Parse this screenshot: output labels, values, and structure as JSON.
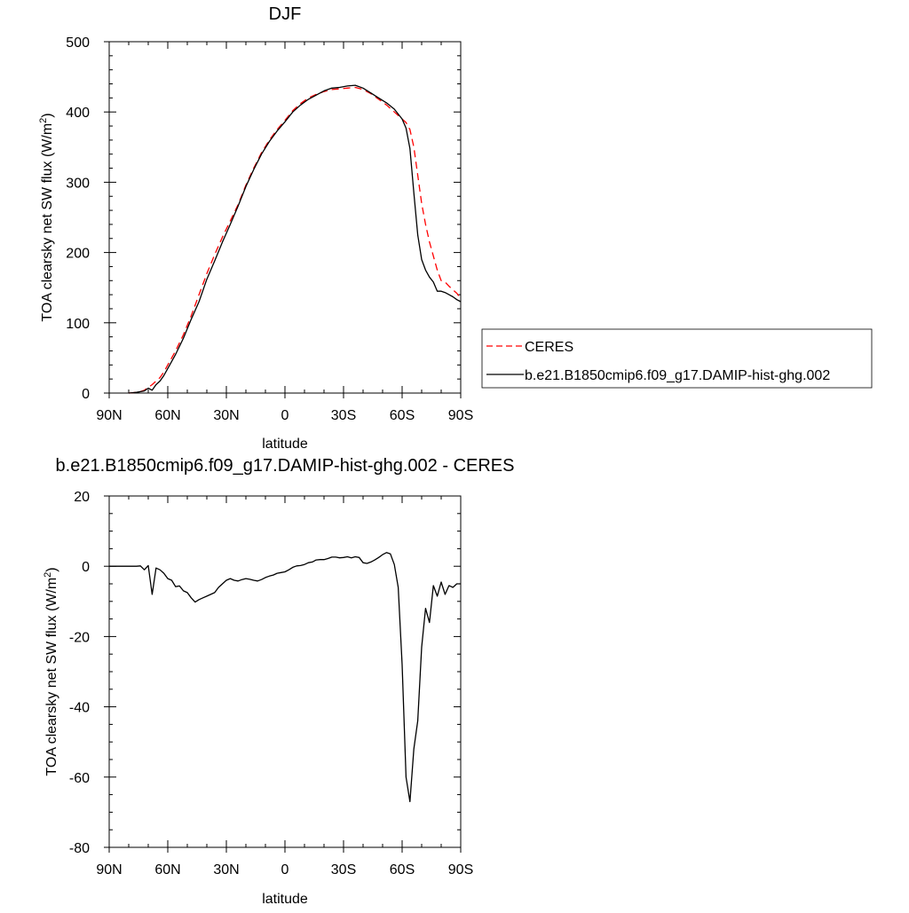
{
  "chart_data": [
    {
      "type": "line",
      "title": "DJF",
      "xlabel": "latitude",
      "ylabel": "TOA clearsky net SW flux (W/m",
      "ylabel_sup": "2",
      "ylabel_end": ")",
      "xlim": [
        90,
        -90
      ],
      "ylim": [
        0,
        500
      ],
      "x_ticks": [
        {
          "value": 90,
          "label": "90N"
        },
        {
          "value": 60,
          "label": "60N"
        },
        {
          "value": 30,
          "label": "30N"
        },
        {
          "value": 0,
          "label": "0"
        },
        {
          "value": -30,
          "label": "30S"
        },
        {
          "value": -60,
          "label": "60S"
        },
        {
          "value": -90,
          "label": "90S"
        }
      ],
      "y_ticks": [
        {
          "value": 0,
          "label": "0"
        },
        {
          "value": 100,
          "label": "100"
        },
        {
          "value": 200,
          "label": "200"
        },
        {
          "value": 300,
          "label": "300"
        },
        {
          "value": 400,
          "label": "400"
        },
        {
          "value": 500,
          "label": "500"
        }
      ],
      "grid": false,
      "legend_position": "right",
      "series": [
        {
          "name": "CERES",
          "color": "#ff0000",
          "dash": "dashed",
          "x": [
            80,
            78,
            76,
            74,
            72,
            70,
            68,
            66,
            64,
            62,
            60,
            56,
            52,
            48,
            44,
            40,
            36,
            32,
            28,
            24,
            20,
            16,
            12,
            8,
            4,
            0,
            -4,
            -8,
            -12,
            -16,
            -20,
            -24,
            -28,
            -32,
            -36,
            -40,
            -44,
            -48,
            -52,
            -56,
            -60,
            -62,
            -64,
            -66,
            -68,
            -70,
            -72,
            -74,
            -76,
            -78,
            -80,
            -82,
            -84,
            -86,
            -88,
            -90
          ],
          "y": [
            0,
            0.5,
            1,
            2,
            4,
            8,
            12,
            17,
            22,
            30,
            40,
            60,
            83,
            110,
            140,
            170,
            197,
            222,
            245,
            268,
            296,
            320,
            342,
            360,
            375,
            388,
            402,
            412,
            420,
            425,
            429,
            432,
            433,
            434,
            435,
            432,
            426,
            418,
            410,
            400,
            390,
            385,
            375,
            350,
            310,
            270,
            240,
            215,
            195,
            175,
            160,
            158,
            152,
            147,
            142,
            135
          ]
        },
        {
          "name": "b.e21.B1850cmip6.f09_g17.DAMIP-hist-ghg.002",
          "color": "#000000",
          "dash": "solid",
          "x": [
            80,
            78,
            76,
            74,
            72,
            70,
            68,
            66,
            64,
            62,
            60,
            56,
            52,
            48,
            44,
            40,
            36,
            32,
            28,
            24,
            20,
            16,
            12,
            8,
            4,
            0,
            -4,
            -8,
            -12,
            -16,
            -20,
            -24,
            -28,
            -32,
            -36,
            -40,
            -44,
            -48,
            -52,
            -56,
            -60,
            -62,
            -64,
            -66,
            -68,
            -70,
            -72,
            -74,
            -76,
            -78,
            -80,
            -82,
            -84,
            -86,
            -88,
            -90
          ],
          "y": [
            0,
            0.5,
            1,
            2,
            3,
            7,
            4,
            12,
            17,
            25,
            35,
            55,
            78,
            105,
            130,
            162,
            188,
            215,
            240,
            266,
            294,
            318,
            340,
            358,
            373,
            386,
            400,
            410,
            418,
            424,
            430,
            434,
            435,
            437,
            438,
            434,
            427,
            420,
            413,
            404,
            390,
            377,
            348,
            285,
            225,
            190,
            175,
            165,
            158,
            145,
            145,
            143,
            140,
            137,
            133,
            130
          ]
        }
      ]
    },
    {
      "type": "line",
      "title": "b.e21.B1850cmip6.f09_g17.DAMIP-hist-ghg.002 - CERES",
      "xlabel": "latitude",
      "ylabel": "TOA clearsky net SW flux (W/m",
      "ylabel_sup": "2",
      "ylabel_end": ")",
      "xlim": [
        90,
        -90
      ],
      "ylim": [
        -80,
        20
      ],
      "x_ticks": [
        {
          "value": 90,
          "label": "90N"
        },
        {
          "value": 60,
          "label": "60N"
        },
        {
          "value": 30,
          "label": "30N"
        },
        {
          "value": 0,
          "label": "0"
        },
        {
          "value": -30,
          "label": "30S"
        },
        {
          "value": -60,
          "label": "60S"
        },
        {
          "value": -90,
          "label": "90S"
        }
      ],
      "y_ticks": [
        {
          "value": -80,
          "label": "-80"
        },
        {
          "value": -60,
          "label": "-60"
        },
        {
          "value": -40,
          "label": "-40"
        },
        {
          "value": -20,
          "label": "-20"
        },
        {
          "value": 0,
          "label": "0"
        },
        {
          "value": 20,
          "label": "20"
        }
      ],
      "grid": false,
      "series": [
        {
          "color": "#000000",
          "dash": "solid",
          "x": [
            90,
            85,
            80,
            76,
            74,
            72,
            70,
            68,
            66,
            64,
            62,
            60,
            58,
            56,
            54,
            52,
            50,
            48,
            46,
            44,
            42,
            40,
            38,
            36,
            34,
            32,
            30,
            28,
            26,
            24,
            22,
            20,
            18,
            16,
            14,
            12,
            10,
            8,
            6,
            4,
            2,
            0,
            -2,
            -4,
            -6,
            -8,
            -10,
            -12,
            -14,
            -16,
            -18,
            -20,
            -22,
            -24,
            -26,
            -28,
            -30,
            -32,
            -34,
            -36,
            -38,
            -40,
            -42,
            -44,
            -46,
            -48,
            -50,
            -52,
            -54,
            -56,
            -58,
            -60,
            -62,
            -64,
            -66,
            -68,
            -70,
            -72,
            -74,
            -76,
            -78,
            -80,
            -82,
            -84,
            -86,
            -88,
            -90
          ],
          "y": [
            0,
            0,
            0,
            0,
            0.1,
            -1,
            0.2,
            -8,
            -0.5,
            -1,
            -2,
            -3.5,
            -4,
            -5.8,
            -5.6,
            -7,
            -7.5,
            -9,
            -10.2,
            -9.5,
            -9,
            -8.5,
            -8,
            -7.5,
            -6,
            -5,
            -4,
            -3.5,
            -4,
            -4.2,
            -3.8,
            -3.5,
            -3.7,
            -4,
            -4.2,
            -3.8,
            -3.2,
            -2.8,
            -2.5,
            -2,
            -1.8,
            -1.6,
            -1,
            -0.3,
            0.1,
            0.2,
            0.5,
            1,
            1.2,
            1.8,
            1.9,
            1.9,
            2.2,
            2.6,
            2.6,
            2.4,
            2.5,
            2.7,
            2.4,
            2.7,
            2.5,
            1,
            0.8,
            1.2,
            1.8,
            2.5,
            3.3,
            3.9,
            3.5,
            0.5,
            -6,
            -28,
            -60,
            -67,
            -52,
            -44,
            -23,
            -12,
            -16,
            -5.5,
            -8.5,
            -4.5,
            -8,
            -5.5,
            -6,
            -5,
            -5
          ]
        }
      ]
    }
  ]
}
